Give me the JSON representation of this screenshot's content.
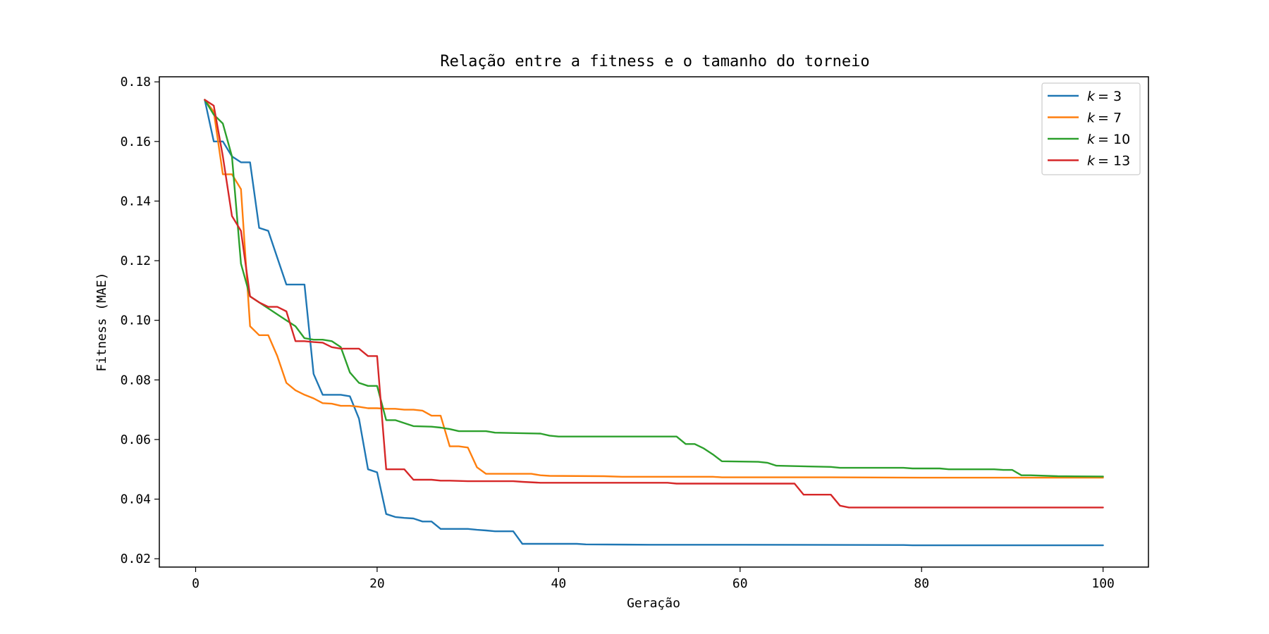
{
  "chart_data": {
    "type": "line",
    "title": "Relação entre a fitness e o tamanho do torneio",
    "xlabel": "Geração",
    "ylabel": "Fitness (MAE)",
    "xlim": [
      -4,
      105
    ],
    "ylim": [
      0.0172,
      0.1817
    ],
    "xticks": [
      0,
      20,
      40,
      60,
      80,
      100
    ],
    "yticks": [
      0.02,
      0.04,
      0.06,
      0.08,
      0.1,
      0.12,
      0.14,
      0.16,
      0.18
    ],
    "xtick_labels": [
      "0",
      "20",
      "40",
      "60",
      "80",
      "100"
    ],
    "ytick_labels": [
      "0.02",
      "0.04",
      "0.06",
      "0.08",
      "0.10",
      "0.12",
      "0.14",
      "0.16",
      "0.18"
    ],
    "grid": false,
    "legend_position": "top-right",
    "series": [
      {
        "name": "k = 3",
        "legend_k": "k",
        "legend_eq": "= 3",
        "color": "#1f77b4",
        "points": [
          [
            1,
            0.174
          ],
          [
            2,
            0.16
          ],
          [
            3,
            0.16
          ],
          [
            4,
            0.155
          ],
          [
            5,
            0.153
          ],
          [
            6,
            0.153
          ],
          [
            7,
            0.131
          ],
          [
            8,
            0.13
          ],
          [
            9,
            0.121
          ],
          [
            10,
            0.112
          ],
          [
            11,
            0.112
          ],
          [
            12,
            0.112
          ],
          [
            13,
            0.082
          ],
          [
            14,
            0.075
          ],
          [
            15,
            0.075
          ],
          [
            16,
            0.075
          ],
          [
            17,
            0.0745
          ],
          [
            18,
            0.067
          ],
          [
            19,
            0.05
          ],
          [
            20,
            0.049
          ],
          [
            21,
            0.035
          ],
          [
            22,
            0.034
          ],
          [
            23,
            0.0337
          ],
          [
            24,
            0.0335
          ],
          [
            25,
            0.0325
          ],
          [
            26,
            0.0325
          ],
          [
            27,
            0.03
          ],
          [
            28,
            0.03
          ],
          [
            29,
            0.03
          ],
          [
            30,
            0.03
          ],
          [
            31,
            0.0297
          ],
          [
            32,
            0.0295
          ],
          [
            33,
            0.0292
          ],
          [
            34,
            0.0292
          ],
          [
            35,
            0.0292
          ],
          [
            36,
            0.025
          ],
          [
            37,
            0.025
          ],
          [
            38,
            0.025
          ],
          [
            39,
            0.025
          ],
          [
            40,
            0.025
          ],
          [
            41,
            0.025
          ],
          [
            42,
            0.025
          ],
          [
            43,
            0.0248
          ],
          [
            50,
            0.0247
          ],
          [
            60,
            0.0247
          ],
          [
            78,
            0.0246
          ],
          [
            79,
            0.0245
          ],
          [
            90,
            0.0245
          ],
          [
            100,
            0.0245
          ]
        ]
      },
      {
        "name": "k = 7",
        "legend_k": "k",
        "legend_eq": "= 7",
        "color": "#ff7f0e",
        "points": [
          [
            1,
            0.174
          ],
          [
            2,
            0.17
          ],
          [
            3,
            0.149
          ],
          [
            4,
            0.149
          ],
          [
            5,
            0.144
          ],
          [
            6,
            0.098
          ],
          [
            7,
            0.095
          ],
          [
            8,
            0.095
          ],
          [
            9,
            0.088
          ],
          [
            10,
            0.079
          ],
          [
            11,
            0.0765
          ],
          [
            12,
            0.075
          ],
          [
            13,
            0.0738
          ],
          [
            14,
            0.0722
          ],
          [
            15,
            0.072
          ],
          [
            16,
            0.0713
          ],
          [
            17,
            0.0713
          ],
          [
            18,
            0.071
          ],
          [
            19,
            0.0705
          ],
          [
            20,
            0.0705
          ],
          [
            21,
            0.0703
          ],
          [
            22,
            0.0703
          ],
          [
            23,
            0.07
          ],
          [
            24,
            0.07
          ],
          [
            25,
            0.0697
          ],
          [
            26,
            0.068
          ],
          [
            27,
            0.068
          ],
          [
            28,
            0.0577
          ],
          [
            29,
            0.0577
          ],
          [
            30,
            0.0573
          ],
          [
            31,
            0.0507
          ],
          [
            32,
            0.0485
          ],
          [
            33,
            0.0485
          ],
          [
            34,
            0.0485
          ],
          [
            35,
            0.0485
          ],
          [
            36,
            0.0485
          ],
          [
            37,
            0.0485
          ],
          [
            38,
            0.048
          ],
          [
            39,
            0.0478
          ],
          [
            45,
            0.0477
          ],
          [
            47,
            0.0475
          ],
          [
            52,
            0.0475
          ],
          [
            57,
            0.0475
          ],
          [
            58,
            0.0473
          ],
          [
            70,
            0.0473
          ],
          [
            80,
            0.0472
          ],
          [
            90,
            0.0472
          ],
          [
            100,
            0.0472
          ]
        ]
      },
      {
        "name": "k = 10",
        "legend_k": "k",
        "legend_eq": "= 10",
        "color": "#2ca02c",
        "points": [
          [
            1,
            0.174
          ],
          [
            2,
            0.169
          ],
          [
            3,
            0.166
          ],
          [
            4,
            0.155
          ],
          [
            5,
            0.119
          ],
          [
            6,
            0.108
          ],
          [
            7,
            0.106
          ],
          [
            8,
            0.104
          ],
          [
            9,
            0.102
          ],
          [
            10,
            0.1
          ],
          [
            11,
            0.098
          ],
          [
            12,
            0.094
          ],
          [
            13,
            0.0935
          ],
          [
            14,
            0.0935
          ],
          [
            15,
            0.093
          ],
          [
            16,
            0.091
          ],
          [
            17,
            0.0825
          ],
          [
            18,
            0.079
          ],
          [
            19,
            0.078
          ],
          [
            20,
            0.078
          ],
          [
            21,
            0.0665
          ],
          [
            22,
            0.0665
          ],
          [
            23,
            0.0655
          ],
          [
            24,
            0.0645
          ],
          [
            26,
            0.0643
          ],
          [
            27,
            0.064
          ],
          [
            28,
            0.0635
          ],
          [
            29,
            0.0628
          ],
          [
            32,
            0.0628
          ],
          [
            33,
            0.0623
          ],
          [
            38,
            0.062
          ],
          [
            39,
            0.0613
          ],
          [
            40,
            0.061
          ],
          [
            53,
            0.061
          ],
          [
            54,
            0.0585
          ],
          [
            55,
            0.0585
          ],
          [
            56,
            0.057
          ],
          [
            57,
            0.055
          ],
          [
            58,
            0.0527
          ],
          [
            62,
            0.0525
          ],
          [
            63,
            0.0522
          ],
          [
            64,
            0.0512
          ],
          [
            70,
            0.0508
          ],
          [
            71,
            0.0505
          ],
          [
            72,
            0.0505
          ],
          [
            78,
            0.0505
          ],
          [
            79,
            0.0503
          ],
          [
            82,
            0.0503
          ],
          [
            83,
            0.05
          ],
          [
            88,
            0.05
          ],
          [
            89,
            0.0498
          ],
          [
            90,
            0.0498
          ],
          [
            91,
            0.048
          ],
          [
            92,
            0.048
          ],
          [
            95,
            0.0477
          ],
          [
            100,
            0.0476
          ]
        ]
      },
      {
        "name": "k = 13",
        "legend_k": "k",
        "legend_eq": "= 13",
        "color": "#d62728",
        "points": [
          [
            1,
            0.174
          ],
          [
            2,
            0.172
          ],
          [
            3,
            0.155
          ],
          [
            4,
            0.135
          ],
          [
            5,
            0.13
          ],
          [
            6,
            0.108
          ],
          [
            7,
            0.106
          ],
          [
            8,
            0.1045
          ],
          [
            9,
            0.1045
          ],
          [
            10,
            0.103
          ],
          [
            11,
            0.093
          ],
          [
            12,
            0.093
          ],
          [
            13,
            0.0927
          ],
          [
            14,
            0.0925
          ],
          [
            15,
            0.091
          ],
          [
            16,
            0.0905
          ],
          [
            17,
            0.0905
          ],
          [
            18,
            0.0905
          ],
          [
            19,
            0.088
          ],
          [
            20,
            0.088
          ],
          [
            21,
            0.05
          ],
          [
            22,
            0.05
          ],
          [
            23,
            0.05
          ],
          [
            24,
            0.0465
          ],
          [
            25,
            0.0465
          ],
          [
            26,
            0.0465
          ],
          [
            27,
            0.0462
          ],
          [
            28,
            0.0462
          ],
          [
            30,
            0.046
          ],
          [
            35,
            0.046
          ],
          [
            36,
            0.0458
          ],
          [
            38,
            0.0455
          ],
          [
            40,
            0.0455
          ],
          [
            52,
            0.0455
          ],
          [
            53,
            0.0452
          ],
          [
            60,
            0.0452
          ],
          [
            66,
            0.0452
          ],
          [
            67,
            0.0415
          ],
          [
            68,
            0.0415
          ],
          [
            70,
            0.0415
          ],
          [
            71,
            0.0378
          ],
          [
            72,
            0.0372
          ],
          [
            80,
            0.0372
          ],
          [
            90,
            0.0372
          ],
          [
            100,
            0.0372
          ]
        ]
      }
    ]
  }
}
